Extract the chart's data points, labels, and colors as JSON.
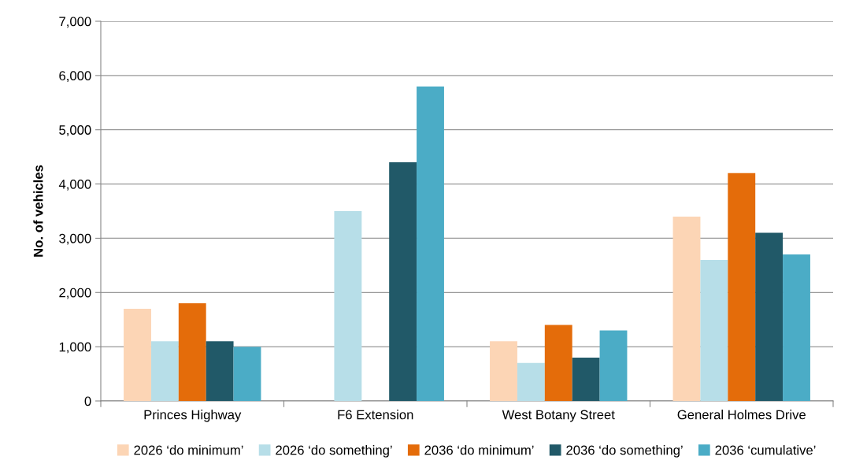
{
  "chart_data": {
    "type": "bar",
    "ylabel": "No. of vehicles",
    "categories": [
      "Princes Highway",
      "F6 Extension",
      "West Botany Street",
      "General Holmes Drive"
    ],
    "series": [
      {
        "name": "2026 ‘do minimum’",
        "color": "#fcd5b5",
        "values": [
          1700,
          null,
          1100,
          3400
        ]
      },
      {
        "name": "2026 ‘do something’",
        "color": "#b7dee8",
        "values": [
          1100,
          3500,
          700,
          2600
        ]
      },
      {
        "name": "2036 ‘do minimum’",
        "color": "#e46c0a",
        "values": [
          1800,
          null,
          1400,
          4200
        ]
      },
      {
        "name": "2036 ‘do something’",
        "color": "#215968",
        "values": [
          1100,
          4400,
          800,
          3100
        ]
      },
      {
        "name": "2036 ‘cumulative’",
        "color": "#4bacc6",
        "values": [
          1000,
          5800,
          1300,
          2700
        ]
      }
    ],
    "ylim": [
      0,
      7000
    ],
    "yticks": [
      0,
      {
        "value": 1000,
        "label": "1,000"
      },
      {
        "value": 2000,
        "label": "2,000"
      },
      {
        "value": 3000,
        "label": "3,000"
      },
      {
        "value": 4000,
        "label": "4,000"
      },
      {
        "value": 5000,
        "label": "5,000"
      },
      {
        "value": 6000,
        "label": "6,000"
      },
      {
        "value": 7000,
        "label": "7,000"
      }
    ],
    "grid": "y",
    "legend": "bottom"
  }
}
